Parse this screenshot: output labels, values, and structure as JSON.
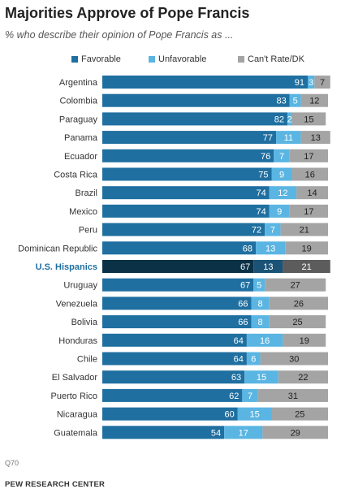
{
  "title": "Majorities Approve of Pope Francis",
  "subtitle": "% who describe their opinion of Pope Francis as ...",
  "note": "Q70",
  "source": "PEW RESEARCH CENTER",
  "colors": {
    "favorable": "#1f6fa0",
    "unfavorable": "#5ab5e2",
    "dk": "#a4a4a4",
    "highlight_favorable": "#0b3146",
    "highlight_unfavorable": "#1b5376",
    "highlight_dk": "#5c5c5c",
    "highlight_label": "#1f6fa0"
  },
  "chart_data": {
    "type": "bar",
    "stacked": true,
    "orientation": "horizontal",
    "categories": [
      "Argentina",
      "Colombia",
      "Paraguay",
      "Panama",
      "Ecuador",
      "Costa Rica",
      "Brazil",
      "Mexico",
      "Peru",
      "Dominican Republic",
      "U.S. Hispanics",
      "Uruguay",
      "Venezuela",
      "Bolivia",
      "Honduras",
      "Chile",
      "El Salvador",
      "Puerto Rico",
      "Nicaragua",
      "Guatemala"
    ],
    "highlight": "U.S. Hispanics",
    "series": [
      {
        "name": "Favorable",
        "values": [
          91,
          83,
          82,
          77,
          76,
          75,
          74,
          74,
          72,
          68,
          67,
          67,
          66,
          66,
          64,
          64,
          63,
          62,
          60,
          54
        ]
      },
      {
        "name": "Unfavorable",
        "values": [
          3,
          5,
          2,
          11,
          7,
          9,
          12,
          9,
          7,
          13,
          13,
          5,
          8,
          8,
          16,
          6,
          15,
          7,
          15,
          17
        ]
      },
      {
        "name": "Can't Rate/DK",
        "values": [
          7,
          12,
          15,
          13,
          17,
          16,
          14,
          17,
          21,
          19,
          21,
          27,
          26,
          25,
          19,
          30,
          22,
          31,
          25,
          29
        ]
      }
    ],
    "legend_position": "top",
    "grid": false
  }
}
